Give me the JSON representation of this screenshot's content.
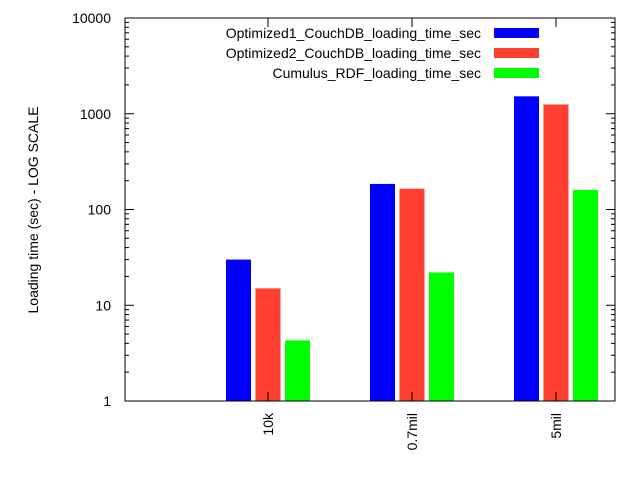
{
  "chart_data": {
    "type": "bar",
    "title": "",
    "xlabel": "",
    "ylabel": "Loading time (sec) - LOG SCALE",
    "y_scale": "log",
    "ylim": [
      1,
      10000
    ],
    "y_ticks": [
      1,
      10,
      100,
      1000,
      10000
    ],
    "y_tick_labels": [
      "1",
      "10",
      "100",
      "1000",
      "10000"
    ],
    "categories": [
      "10k",
      "0.7mil",
      "5mil"
    ],
    "legend_position": "top-right",
    "grid": false,
    "series": [
      {
        "name": "Optimized1_CouchDB_loading_time_sec",
        "color": "#0000ff",
        "values": [
          30,
          185,
          1520
        ]
      },
      {
        "name": "Optimized2_CouchDB_loading_time_sec",
        "color": "#ff4030",
        "values": [
          15,
          165,
          1250
        ]
      },
      {
        "name": "Cumulus_RDF_loading_time_sec",
        "color": "#00ff00",
        "values": [
          4.3,
          22,
          160
        ]
      }
    ]
  }
}
